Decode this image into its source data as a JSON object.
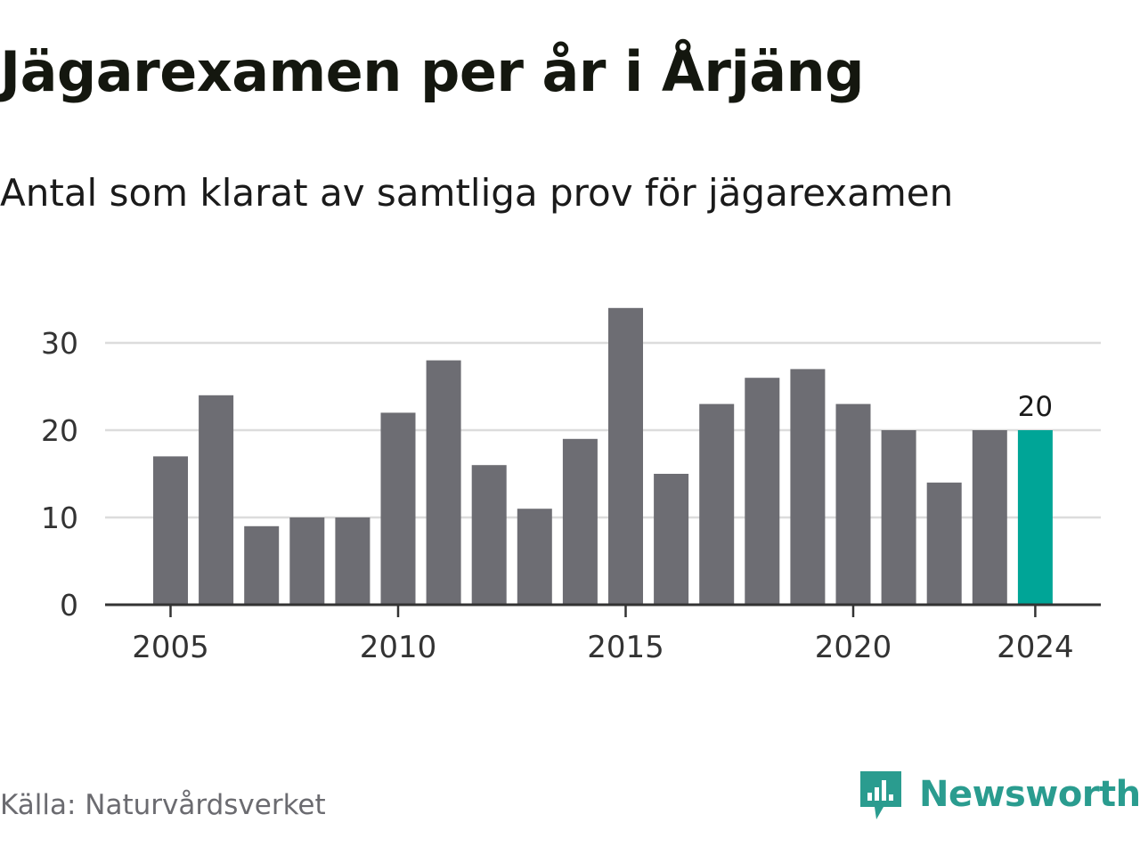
{
  "header": {
    "title": "Jägarexamen per år i Årjäng",
    "subtitle": "Antal som klarat av samtliga prov för jägarexamen"
  },
  "footer": {
    "source": "Källa: Naturvårdsverket",
    "brand": "Newsworthy"
  },
  "colors": {
    "bar": "#6d6d73",
    "highlight": "#00a597",
    "grid": "#dcdcdc",
    "axis": "#333333",
    "brand": "#2a9c8f"
  },
  "icons": {
    "brand_logo": "newsworthy-logo-icon"
  },
  "chart_data": {
    "type": "bar",
    "x": [
      2005,
      2006,
      2007,
      2008,
      2009,
      2010,
      2011,
      2012,
      2013,
      2014,
      2015,
      2016,
      2017,
      2018,
      2019,
      2020,
      2021,
      2022,
      2023,
      2024
    ],
    "values": [
      17,
      24,
      9,
      10,
      10,
      22,
      28,
      16,
      11,
      19,
      34,
      15,
      23,
      26,
      27,
      23,
      20,
      14,
      20,
      20
    ],
    "x_ticks": [
      "2005",
      "2010",
      "2015",
      "2020",
      "2024"
    ],
    "y_ticks": [
      "0",
      "10",
      "20",
      "30"
    ],
    "ylim": [
      0,
      35
    ],
    "grid": true,
    "highlight": {
      "x": 2024,
      "label": "20"
    }
  }
}
